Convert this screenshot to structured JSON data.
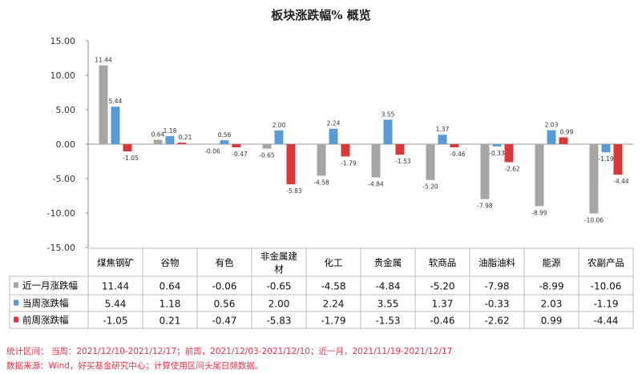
{
  "chart_data": {
    "type": "bar",
    "title": "板块涨跌幅% 概览",
    "categories": [
      "煤焦钢矿",
      "谷物",
      "有色",
      "非金属建材",
      "化工",
      "贵金属",
      "软商品",
      "油脂油料",
      "能源",
      "农副产品"
    ],
    "ylim": [
      -15,
      15
    ],
    "yticks": [
      "15.00",
      "10.00",
      "5.00",
      "0.00",
      "-5.00",
      "-10.00",
      "-15.00"
    ],
    "series": [
      {
        "name": "近一月涨跌幅",
        "color": "#a6a6a6",
        "values": [
          11.44,
          0.64,
          -0.06,
          -0.65,
          -4.58,
          -4.84,
          -5.2,
          -7.98,
          -8.99,
          -10.06
        ]
      },
      {
        "name": "当周涨跌幅",
        "color": "#5b9bd5",
        "values": [
          5.44,
          1.18,
          0.56,
          2.0,
          2.24,
          3.55,
          1.37,
          -0.33,
          2.03,
          -1.19
        ]
      },
      {
        "name": "前周涨跌幅",
        "color": "#d63a3a",
        "values": [
          -1.05,
          0.21,
          -0.47,
          -5.83,
          -1.79,
          -1.53,
          -0.46,
          -2.62,
          0.99,
          -4.44
        ]
      }
    ]
  },
  "footer": {
    "period": "统计区间： 当周：2021/12/10-2021/12/17；前周，2021/12/03-2021/12/10；近一月，2021/11/19-2021/12/17",
    "source": "数据来源：Wind，好买基金研究中心；计算使用区间头尾日频数据。"
  }
}
